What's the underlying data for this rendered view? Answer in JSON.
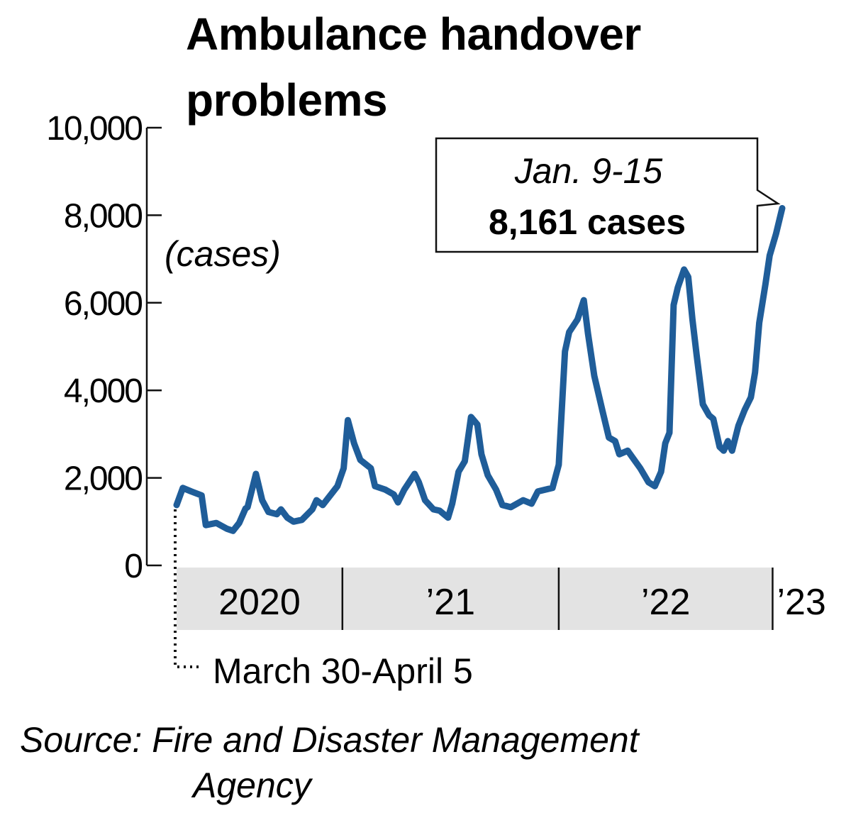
{
  "chart_data": {
    "type": "line",
    "title": "Ambulance handover problems",
    "ylabel": "(cases)",
    "xlabel": "",
    "ylim": [
      0,
      10000
    ],
    "xlim": [
      0,
      145
    ],
    "x_unit": "weeks since March 30, 2020",
    "yticks": [
      0,
      2000,
      4000,
      6000,
      8000,
      10000
    ],
    "ytick_labels": [
      "0",
      "2,000",
      "4,000",
      "6,000",
      "8,000",
      "10,000"
    ],
    "year_bands": [
      {
        "label": "2020",
        "start": 0,
        "end": 39.7
      },
      {
        "label": "’21",
        "start": 39.7,
        "end": 91.5
      },
      {
        "label": "’22",
        "start": 91.5,
        "end": 142.7
      },
      {
        "label": "’23",
        "start": 142.7,
        "end": 145
      }
    ],
    "start_annotation": "March 30-April 5",
    "end_annotation": {
      "period": "Jan. 9-15",
      "value_label": "8,161 cases",
      "value": 8161
    },
    "source": "Source: Fire and Disaster Management Agency",
    "line_color": "#1f5d99",
    "band_color": "#e3e3e3",
    "series": [
      {
        "name": "cases",
        "points": [
          [
            0,
            1380
          ],
          [
            1.5,
            1770
          ],
          [
            3.5,
            1690
          ],
          [
            6,
            1600
          ],
          [
            7,
            920
          ],
          [
            9.5,
            970
          ],
          [
            12,
            840
          ],
          [
            13.5,
            790
          ],
          [
            15,
            970
          ],
          [
            16.5,
            1300
          ],
          [
            17,
            1330
          ],
          [
            19,
            2090
          ],
          [
            20.5,
            1490
          ],
          [
            22,
            1220
          ],
          [
            24,
            1170
          ],
          [
            25,
            1280
          ],
          [
            26.5,
            1090
          ],
          [
            28,
            1000
          ],
          [
            30,
            1040
          ],
          [
            32.5,
            1280
          ],
          [
            33.5,
            1490
          ],
          [
            35,
            1380
          ],
          [
            38.5,
            1810
          ],
          [
            40,
            2220
          ],
          [
            41,
            3320
          ],
          [
            42.5,
            2790
          ],
          [
            44,
            2410
          ],
          [
            46.5,
            2220
          ],
          [
            47.5,
            1810
          ],
          [
            50,
            1730
          ],
          [
            52,
            1620
          ],
          [
            53,
            1440
          ],
          [
            54.5,
            1730
          ],
          [
            57,
            2090
          ],
          [
            58,
            1900
          ],
          [
            59.5,
            1490
          ],
          [
            61.5,
            1280
          ],
          [
            63,
            1250
          ],
          [
            65,
            1090
          ],
          [
            66,
            1410
          ],
          [
            67.5,
            2140
          ],
          [
            69,
            2380
          ],
          [
            70.5,
            3390
          ],
          [
            72,
            3220
          ],
          [
            73,
            2540
          ],
          [
            74.5,
            2060
          ],
          [
            76.5,
            1730
          ],
          [
            78,
            1380
          ],
          [
            80,
            1330
          ],
          [
            83,
            1490
          ],
          [
            85,
            1410
          ],
          [
            86.5,
            1690
          ],
          [
            90,
            1770
          ],
          [
            91.5,
            2300
          ],
          [
            93,
            4890
          ],
          [
            94,
            5330
          ],
          [
            96,
            5620
          ],
          [
            97.5,
            6060
          ],
          [
            98.5,
            5300
          ],
          [
            100,
            4330
          ],
          [
            102,
            3520
          ],
          [
            103.5,
            2920
          ],
          [
            105,
            2840
          ],
          [
            106,
            2540
          ],
          [
            108,
            2620
          ],
          [
            111,
            2220
          ],
          [
            113,
            1900
          ],
          [
            114.5,
            1810
          ],
          [
            116,
            2140
          ],
          [
            117,
            2790
          ],
          [
            118,
            3030
          ],
          [
            119,
            5950
          ],
          [
            120,
            6350
          ],
          [
            121.5,
            6760
          ],
          [
            122.5,
            6590
          ],
          [
            123.5,
            5620
          ],
          [
            124.5,
            4810
          ],
          [
            126,
            3680
          ],
          [
            127.5,
            3430
          ],
          [
            128.5,
            3350
          ],
          [
            130,
            2710
          ],
          [
            131,
            2620
          ],
          [
            132,
            2840
          ],
          [
            133,
            2620
          ],
          [
            134.5,
            3190
          ],
          [
            136,
            3550
          ],
          [
            137.5,
            3840
          ],
          [
            138.5,
            4410
          ],
          [
            139.5,
            5540
          ],
          [
            141,
            6430
          ],
          [
            142,
            7080
          ],
          [
            143.5,
            7570
          ],
          [
            145,
            8161
          ]
        ]
      }
    ]
  },
  "title_lines": [
    "Ambulance handover",
    "problems"
  ],
  "source_lines": [
    "Source: Fire and Disaster Management",
    "Agency"
  ]
}
